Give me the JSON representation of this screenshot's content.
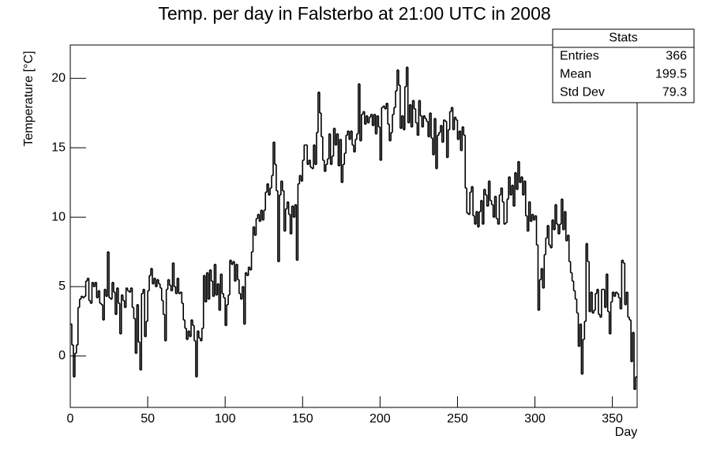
{
  "chart_data": {
    "type": "histogram",
    "title": "Temp. per day in Falsterbo at 21:00 UTC in 2008",
    "xlabel": "Day",
    "ylabel": "Temperature [°C]",
    "color": "#000000",
    "xlim": [
      0,
      366
    ],
    "ylim": [
      -3.7,
      22.4
    ],
    "xticks": [
      0,
      50,
      100,
      150,
      200,
      250,
      300,
      350
    ],
    "yticks": [
      0,
      5,
      10,
      15,
      20
    ],
    "bins": [
      0,
      1,
      2,
      3,
      4,
      5,
      6,
      7,
      8,
      9,
      10,
      11,
      12,
      13,
      14,
      15,
      16,
      17,
      18,
      19,
      20,
      21,
      22,
      23,
      24,
      25,
      26,
      27,
      28,
      29,
      30,
      31,
      32,
      33,
      34,
      35,
      36,
      37,
      38,
      39,
      40,
      41,
      42,
      43,
      44,
      45,
      46,
      47,
      48,
      49,
      50,
      51,
      52,
      53,
      54,
      55,
      56,
      57,
      58,
      59,
      60,
      61,
      62,
      63,
      64,
      65,
      66,
      67,
      68,
      69,
      70,
      71,
      72,
      73,
      74,
      75,
      76,
      77,
      78,
      79,
      80,
      81,
      82,
      83,
      84,
      85,
      86,
      87,
      88,
      89,
      90,
      91,
      92,
      93,
      94,
      95,
      96,
      97,
      98,
      99,
      100,
      101,
      102,
      103,
      104,
      105,
      106,
      107,
      108,
      109,
      110,
      111,
      112,
      113,
      114,
      115,
      116,
      117,
      118,
      119,
      120,
      121,
      122,
      123,
      124,
      125,
      126,
      127,
      128,
      129,
      130,
      131,
      132,
      133,
      134,
      135,
      136,
      137,
      138,
      139,
      140,
      141,
      142,
      143,
      144,
      145,
      146,
      147,
      148,
      149,
      150,
      151,
      152,
      153,
      154,
      155,
      156,
      157,
      158,
      159,
      160,
      161,
      162,
      163,
      164,
      165,
      166,
      167,
      168,
      169,
      170,
      171,
      172,
      173,
      174,
      175,
      176,
      177,
      178,
      179,
      180,
      181,
      182,
      183,
      184,
      185,
      186,
      187,
      188,
      189,
      190,
      191,
      192,
      193,
      194,
      195,
      196,
      197,
      198,
      199,
      200,
      201,
      202,
      203,
      204,
      205,
      206,
      207,
      208,
      209,
      210,
      211,
      212,
      213,
      214,
      215,
      216,
      217,
      218,
      219,
      220,
      221,
      222,
      223,
      224,
      225,
      226,
      227,
      228,
      229,
      230,
      231,
      232,
      233,
      234,
      235,
      236,
      237,
      238,
      239,
      240,
      241,
      242,
      243,
      244,
      245,
      246,
      247,
      248,
      249,
      250,
      251,
      252,
      253,
      254,
      255,
      256,
      257,
      258,
      259,
      260,
      261,
      262,
      263,
      264,
      265,
      266,
      267,
      268,
      269,
      270,
      271,
      272,
      273,
      274,
      275,
      276,
      277,
      278,
      279,
      280,
      281,
      282,
      283,
      284,
      285,
      286,
      287,
      288,
      289,
      290,
      291,
      292,
      293,
      294,
      295,
      296,
      297,
      298,
      299,
      300,
      301,
      302,
      303,
      304,
      305,
      306,
      307,
      308,
      309,
      310,
      311,
      312,
      313,
      314,
      315,
      316,
      317,
      318,
      319,
      320,
      321,
      322,
      323,
      324,
      325,
      326,
      327,
      328,
      329,
      330,
      331,
      332,
      333,
      334,
      335,
      336,
      337,
      338,
      339,
      340,
      341,
      342,
      343,
      344,
      345,
      346,
      347,
      348,
      349,
      350,
      351,
      352,
      353,
      354,
      355,
      356,
      357,
      358,
      359,
      360,
      361,
      362,
      363,
      364,
      365,
      366
    ],
    "values": [
      2.3,
      0.8,
      -1.5,
      0.2,
      0.8,
      3.5,
      4.1,
      4.3,
      4.2,
      4.3,
      5.4,
      5.6,
      4.0,
      3.8,
      5.3,
      5.0,
      5.3,
      4.2,
      4.7,
      3.8,
      3.7,
      2.6,
      4.8,
      4.3,
      7.5,
      4.2,
      4.1,
      5.3,
      4.6,
      3.0,
      4.9,
      3.8,
      1.6,
      4.4,
      4.0,
      3.5,
      4.9,
      4.7,
      4.6,
      4.9,
      3.5,
      2.7,
      0.2,
      3.7,
      1.0,
      -1.0,
      4.5,
      4.8,
      1.4,
      2.5,
      4.7,
      5.8,
      6.3,
      5.2,
      5.6,
      5.0,
      5.5,
      5.2,
      4.9,
      4.0,
      3.0,
      1.1,
      4.8,
      5.5,
      5.1,
      4.7,
      6.7,
      5.0,
      4.5,
      5.6,
      4.5,
      4.6,
      3.8,
      2.6,
      2.0,
      1.2,
      1.8,
      1.4,
      2.6,
      2.2,
      1.1,
      -1.5,
      1.8,
      1.3,
      1.1,
      2.0,
      5.8,
      3.9,
      6.0,
      4.1,
      6.2,
      5.4,
      4.3,
      6.6,
      4.4,
      5.2,
      3.3,
      5.9,
      4.5,
      4.2,
      2.2,
      3.7,
      4.4,
      6.9,
      6.6,
      6.8,
      5.4,
      6.6,
      5.5,
      4.5,
      4.1,
      5.0,
      2.3,
      6.0,
      5.8,
      6.4,
      6.2,
      7.5,
      9.3,
      8.7,
      9.9,
      10.2,
      9.7,
      10.5,
      9.8,
      10.5,
      11.8,
      12.4,
      11.6,
      12.1,
      13.0,
      15.4,
      13.8,
      11.9,
      6.8,
      11.6,
      12.6,
      11.9,
      9.0,
      10.6,
      11.1,
      10.2,
      8.8,
      10.8,
      10.0,
      10.9,
      6.9,
      12.4,
      13.0,
      12.6,
      14.1,
      15.2,
      15.2,
      13.8,
      14.1,
      13.6,
      13.5,
      15.2,
      13.8,
      16.1,
      19.0,
      17.5,
      15.8,
      14.1,
      13.3,
      13.8,
      14.2,
      16.0,
      13.8,
      14.4,
      16.4,
      15.2,
      16.0,
      13.7,
      15.6,
      12.5,
      13.8,
      14.6,
      15.9,
      16.2,
      15.6,
      16.2,
      15.2,
      14.7,
      15.6,
      16.0,
      19.6,
      15.5,
      17.4,
      17.6,
      16.7,
      17.3,
      16.8,
      17.2,
      17.4,
      16.6,
      17.4,
      16.0,
      17.3,
      16.5,
      14.1,
      17.9,
      18.0,
      17.8,
      18.2,
      16.7,
      15.5,
      16.1,
      17.4,
      17.9,
      19.1,
      20.6,
      19.5,
      16.4,
      17.3,
      16.3,
      19.4,
      20.8,
      16.8,
      18.1,
      16.5,
      18.4,
      17.8,
      16.8,
      15.9,
      18.4,
      17.3,
      16.5,
      17.3,
      17.1,
      16.9,
      15.8,
      17.5,
      15.7,
      14.5,
      17.1,
      13.5,
      15.9,
      16.1,
      16.6,
      15.4,
      17.0,
      16.9,
      14.3,
      16.3,
      17.6,
      17.9,
      16.3,
      17.2,
      17.0,
      15.6,
      16.2,
      14.8,
      16.5,
      15.9,
      12.1,
      10.3,
      10.2,
      11.8,
      12.2,
      10.1,
      9.5,
      10.4,
      9.3,
      10.4,
      11.2,
      9.5,
      12.0,
      11.6,
      10.8,
      12.6,
      11.2,
      10.9,
      10.0,
      11.5,
      9.9,
      9.5,
      11.6,
      12.1,
      11.1,
      9.5,
      9.6,
      11.3,
      12.9,
      11.6,
      12.3,
      10.8,
      13.2,
      12.0,
      14.0,
      12.5,
      12.9,
      11.6,
      12.6,
      10.1,
      9.0,
      11.1,
      9.7,
      10.2,
      9.8,
      10.1,
      8.0,
      3.3,
      5.5,
      6.3,
      4.9,
      7.3,
      8.5,
      9.4,
      8.0,
      7.8,
      9.8,
      9.1,
      10.9,
      9.5,
      8.8,
      9.5,
      11.3,
      9.1,
      10.4,
      8.3,
      8.7,
      6.8,
      6.0,
      5.4,
      4.7,
      4.1,
      3.1,
      0.7,
      2.3,
      -1.3,
      1.2,
      2.5,
      8.1,
      6.8,
      3.2,
      4.6,
      3.1,
      3.3,
      4.5,
      4.8,
      3.0,
      2.8,
      4.8,
      4.8,
      3.5,
      5.9,
      3.2,
      1.6,
      3.9,
      4.6,
      4.3,
      4.6,
      4.5,
      4.2,
      3.4,
      6.9,
      6.7,
      3.7,
      4.6,
      2.8,
      2.6,
      -0.4,
      1.7,
      -2.4,
      -1.5
    ],
    "stats": {
      "title": "Stats",
      "rows": [
        {
          "label": "Entries",
          "value": 366
        },
        {
          "label": "Mean",
          "value": 199.5
        },
        {
          "label": "Std Dev",
          "value": 79.3
        }
      ]
    }
  }
}
